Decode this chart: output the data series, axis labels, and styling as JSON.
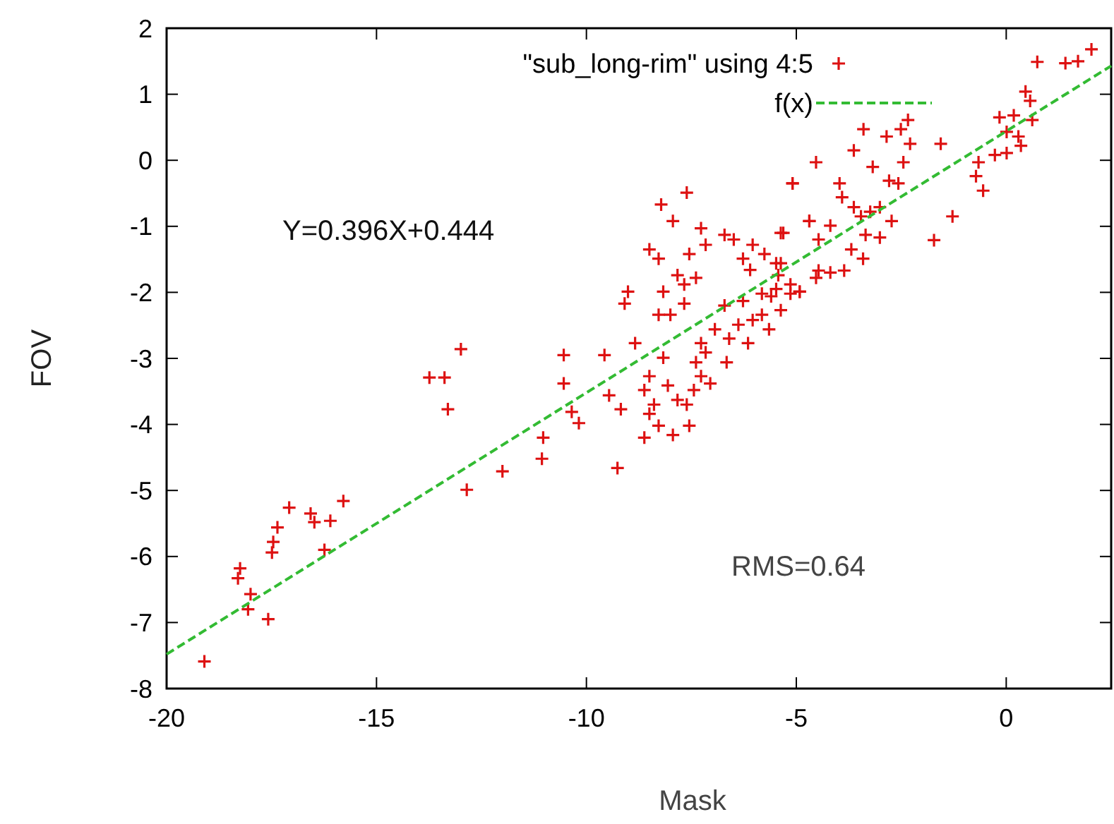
{
  "chart_data": {
    "type": "scatter",
    "xlabel": "Mask",
    "ylabel": "FOV",
    "xlim": [
      -20,
      2.5
    ],
    "ylim": [
      -8,
      2
    ],
    "xticks": [
      -20,
      -15,
      -10,
      -5,
      0
    ],
    "yticks": [
      -8,
      -7,
      -6,
      -5,
      -4,
      -3,
      -2,
      -1,
      0,
      1,
      2
    ],
    "grid": false,
    "legend": "top",
    "marker": "cross",
    "annotations": [
      "Y=0.396X+0.444",
      "RMS=0.64"
    ],
    "series": [
      {
        "name": "\"sub_long-rim\" using 4:5",
        "color": "#dd1111",
        "x": [
          -19.1,
          -18.06,
          -18.25,
          -18.3,
          -18.0,
          -17.58,
          -17.49,
          -17.46,
          -17.36,
          -17.08,
          -16.57,
          -16.48,
          -16.1,
          -16.24,
          -15.79,
          -13.74,
          -13.38,
          -12.99,
          -13.3,
          -12.85,
          -12.0,
          -10.54,
          -9.57,
          -10.54,
          -10.35,
          -10.18,
          -11.03,
          -11.06,
          -9.26,
          -9.46,
          -9.18,
          -8.84,
          -9.09,
          -9.01,
          -8.22,
          -7.61,
          -7.94,
          -8.5,
          -8.28,
          -7.27,
          -7.16,
          -7.55,
          -7.83,
          -7.67,
          -7.39,
          -8.17,
          -7.67,
          -8.28,
          -8.0,
          -8.17,
          -8.5,
          -8.62,
          -8.39,
          -8.5,
          -8.28,
          -8.62,
          -7.94,
          -8.06,
          -7.83,
          -7.61,
          -7.44,
          -7.55,
          -7.27,
          -7.05,
          -7.39,
          -7.16,
          -7.27,
          -6.94,
          -6.6,
          -6.66,
          -6.38,
          -6.15,
          -6.04,
          -5.82,
          -5.65,
          -5.37,
          -6.71,
          -6.27,
          -5.82,
          -5.48,
          -5.14,
          -4.92,
          -6.27,
          -6.1,
          -6.71,
          -6.49,
          -6.04,
          -5.76,
          -5.48,
          -5.37,
          -5.09,
          -4.69,
          -4.47,
          -4.53,
          0.74,
          1.41,
          2.03,
          1.71,
          0.46,
          0.57,
          -0.16,
          0.18,
          0.62,
          0.01,
          0.29,
          0.01,
          -0.27,
          0.35,
          -0.66,
          -0.72,
          -0.55,
          -1.28,
          -1.72,
          -1.56,
          -2.34,
          -2.51,
          -2.29,
          -2.45,
          -2.85,
          -3.4,
          -3.63,
          -3.18,
          -4.53,
          -5.09,
          -2.79,
          -2.57,
          -3.97,
          -3.91,
          -3.63,
          -3.46,
          -3.24,
          -3.01,
          -2.73,
          -3.35,
          -3.01,
          -3.69,
          -3.41,
          -4.19,
          -4.69,
          -5.31,
          -4.47,
          -4.19,
          -3.86,
          -5.37,
          -5.43,
          -5.6,
          -5.14,
          -4.92
        ],
        "values": [
          -7.59,
          -6.8,
          -6.18,
          -6.33,
          -6.57,
          -6.95,
          -5.94,
          -5.78,
          -5.56,
          -5.26,
          -5.35,
          -5.48,
          -5.46,
          -5.9,
          -5.16,
          -3.29,
          -3.29,
          -2.86,
          -3.77,
          -4.99,
          -4.71,
          -2.95,
          -2.95,
          -3.38,
          -3.81,
          -3.98,
          -4.2,
          -4.52,
          -4.66,
          -3.56,
          -3.77,
          -2.77,
          -2.17,
          -1.99,
          -0.67,
          -0.49,
          -0.92,
          -1.35,
          -1.49,
          -1.03,
          -1.28,
          -1.42,
          -1.74,
          -1.88,
          -1.78,
          -1.99,
          -2.17,
          -2.34,
          -2.34,
          -2.99,
          -3.27,
          -3.48,
          -3.7,
          -3.84,
          -4.02,
          -4.2,
          -4.16,
          -3.41,
          -3.63,
          -3.7,
          -3.48,
          -4.02,
          -3.27,
          -3.38,
          -3.06,
          -2.91,
          -2.77,
          -2.56,
          -2.7,
          -3.06,
          -2.49,
          -2.77,
          -2.42,
          -2.34,
          -2.56,
          -2.27,
          -2.2,
          -2.13,
          -2.02,
          -1.95,
          -2.02,
          -1.99,
          -1.49,
          -1.66,
          -1.13,
          -1.2,
          -1.28,
          -1.42,
          -1.56,
          -1.1,
          -0.35,
          -0.92,
          -1.2,
          -1.78,
          1.49,
          1.47,
          1.68,
          1.5,
          1.04,
          0.9,
          0.65,
          0.68,
          0.61,
          0.43,
          0.36,
          0.11,
          0.08,
          0.22,
          -0.03,
          -0.24,
          -0.46,
          -0.85,
          -1.21,
          0.25,
          0.61,
          0.47,
          0.25,
          -0.03,
          0.36,
          0.47,
          0.15,
          -0.1,
          -0.03,
          -0.35,
          -0.31,
          -0.35,
          -0.35,
          -0.56,
          -0.71,
          -0.85,
          -0.78,
          -0.71,
          -0.92,
          -1.13,
          -1.17,
          -1.35,
          -1.49,
          -0.99,
          -0.92,
          -1.1,
          -1.67,
          -1.7,
          -1.67,
          -1.56,
          -1.74,
          -2.06,
          -1.88,
          -1.99
        ]
      },
      {
        "name": "f(x)",
        "color": "#33bb33",
        "type": "line",
        "line_style": "dashed",
        "marker": "none",
        "x": [
          -20,
          2.5
        ],
        "values": [
          -7.48,
          1.43
        ]
      }
    ]
  }
}
